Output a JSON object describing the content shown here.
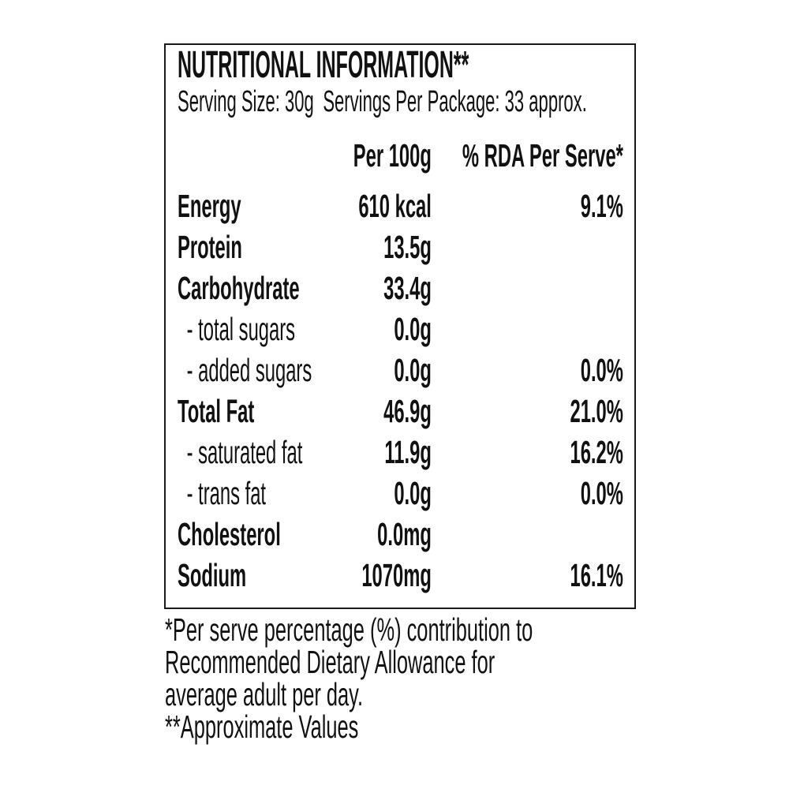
{
  "panel": {
    "title": "NUTRITIONAL INFORMATION**",
    "serving": {
      "size": "Serving Size: 30g",
      "per_package": "Servings Per Package: 33 approx."
    },
    "columns": {
      "amount": "Per 100g",
      "rda": "% RDA Per Serve*"
    },
    "rows": [
      {
        "name": "Energy",
        "per100g": "610 kcal",
        "rda": "9.1%"
      },
      {
        "name": "Protein",
        "per100g": "13.5g",
        "rda": ""
      },
      {
        "name": "Carbohydrate",
        "per100g": "33.4g",
        "rda": ""
      },
      {
        "name": "- total sugars",
        "per100g": "0.0g",
        "rda": ""
      },
      {
        "name": "- added sugars",
        "per100g": "0.0g",
        "rda": "0.0%"
      },
      {
        "name": "Total Fat",
        "per100g": "46.9g",
        "rda": "21.0%"
      },
      {
        "name": "- saturated fat",
        "per100g": "11.9g",
        "rda": "16.2%"
      },
      {
        "name": "- trans fat",
        "per100g": "0.0g",
        "rda": "0.0%"
      },
      {
        "name": "Cholesterol",
        "per100g": "0.0mg",
        "rda": ""
      },
      {
        "name": "Sodium",
        "per100g": "1070mg",
        "rda": "16.1%"
      }
    ]
  },
  "footnotes": {
    "lines": [
      "*Per serve percentage (%) contribution to",
      "Recommended Dietary Allowance for",
      "average adult per day.",
      "**Approximate Values"
    ]
  },
  "colors": {
    "text": "#111111",
    "border": "#1a1a1a",
    "background": "#ffffff"
  }
}
